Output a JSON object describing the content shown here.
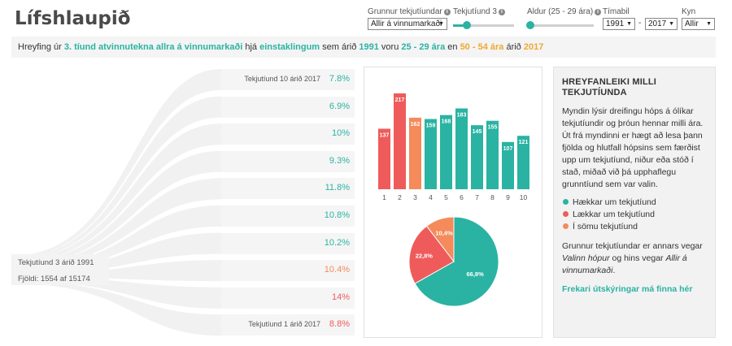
{
  "app": {
    "title": "Lífshlaupið"
  },
  "controls": {
    "grunnur": {
      "label": "Grunnur tekjutíundar",
      "value": "Allir á vinnumarkaði"
    },
    "tekjutiund": {
      "label": "Tekjutíund 3",
      "level": 0.22
    },
    "aldur": {
      "label": "Aldur (25 - 29 ára)",
      "level": 0.0
    },
    "timabil": {
      "label": "Tímabil",
      "from": "1991",
      "to": "2017",
      "separator": "-"
    },
    "kyn": {
      "label": "Kyn",
      "value": "Allir"
    }
  },
  "banner": {
    "p1": "Hreyfing úr ",
    "h1": "3. tíund atvinnutekna allra á vinnumarkaði",
    "p2": " hjá ",
    "h2": "einstaklingum",
    "p3": " sem árið ",
    "h3": "1991",
    "p4": " voru ",
    "h4": "25 - 29 ára",
    "p5": " en ",
    "h5": "50 - 54 ára",
    "p6": " árið ",
    "h6": "2017"
  },
  "flow": {
    "source_label": "Tekjutíund 3 árið 1991",
    "count_label": "Fjöldi: 1554 af 15174",
    "deciles": [
      {
        "pct": "7.8%",
        "tone": "teal",
        "label": "Tekjutíund 10 árið 2017"
      },
      {
        "pct": "6.9%",
        "tone": "teal",
        "label": ""
      },
      {
        "pct": "10%",
        "tone": "teal",
        "label": ""
      },
      {
        "pct": "9.3%",
        "tone": "teal",
        "label": ""
      },
      {
        "pct": "11.8%",
        "tone": "teal",
        "label": ""
      },
      {
        "pct": "10.8%",
        "tone": "teal",
        "label": ""
      },
      {
        "pct": "10.2%",
        "tone": "teal",
        "label": ""
      },
      {
        "pct": "10.4%",
        "tone": "orange",
        "label": ""
      },
      {
        "pct": "14%",
        "tone": "red",
        "label": ""
      },
      {
        "pct": "8.8%",
        "tone": "red",
        "label": "Tekjutíund 1 árið 2017"
      }
    ]
  },
  "colors": {
    "up": "#2ab3a3",
    "down": "#ef5b5b",
    "same": "#f58a5b",
    "grid": "#eeeeee"
  },
  "chart_data": [
    {
      "type": "bar",
      "categories": [
        "1",
        "2",
        "3",
        "4",
        "5",
        "6",
        "7",
        "8",
        "9",
        "10"
      ],
      "values": [
        137,
        217,
        162,
        159,
        168,
        183,
        145,
        155,
        107,
        121
      ],
      "groups": [
        "down",
        "down",
        "same",
        "up",
        "up",
        "up",
        "up",
        "up",
        "up",
        "up"
      ],
      "ylim": [
        0,
        217
      ]
    },
    {
      "type": "pie",
      "labels": [
        "Hækkar um tekjutíund",
        "Lækkar um tekjutíund",
        "Í sömu tekjutíund"
      ],
      "values": [
        66.8,
        22.8,
        10.4
      ],
      "value_labels": [
        "66,8%",
        "22,8%",
        "10,4%"
      ]
    }
  ],
  "side": {
    "title": "HREYFANLEIKI MILLI TEKJUTÍUNDA",
    "intro": "Myndin lýsir dreifingu hóps á ólíkar tekjutíundir og þróun hennar milli ára. Út frá myndinni er hægt að lesa þann fjölda og hlutfall hópsins sem færðist upp um tekjutíund, niður eða stóð í stað, miðað við þá upphaflegu grunntíund sem var valin.",
    "legend": [
      {
        "label": "Hækkar um tekjutíund",
        "color": "#2ab3a3"
      },
      {
        "label": "Lækkar um tekjutíund",
        "color": "#ef5b5b"
      },
      {
        "label": "Í sömu tekjutíund",
        "color": "#f58a5b"
      }
    ],
    "note_p1": "Grunnur tekjutíundar er annars vegar ",
    "note_em1": "Valinn hópur",
    "note_p2": " og hins vegar ",
    "note_em2": "Allir á vinnumarkaði",
    "note_p3": ".",
    "link": "Frekari útskýringar má finna hér"
  }
}
